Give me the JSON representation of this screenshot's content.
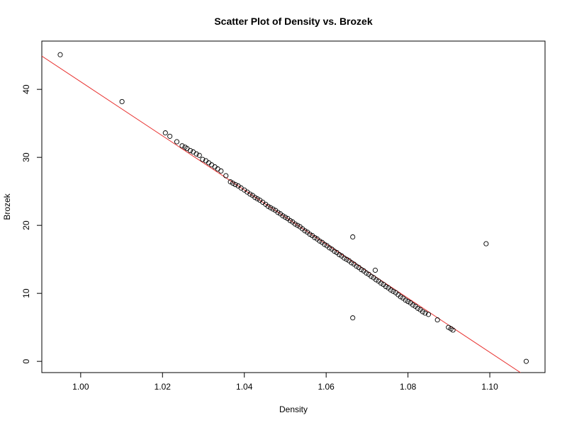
{
  "chart_data": {
    "type": "scatter",
    "title": "Scatter Plot of Density vs. Brozek",
    "xlabel": "Density",
    "ylabel": "Brozek",
    "xlim": [
      0.9905,
      1.1135
    ],
    "ylim": [
      -1.65,
      47.1
    ],
    "x_ticks": [
      1.0,
      1.02,
      1.04,
      1.06,
      1.08,
      1.1
    ],
    "x_tick_labels": [
      "1.00",
      "1.02",
      "1.04",
      "1.06",
      "1.08",
      "1.10"
    ],
    "y_ticks": [
      0,
      10,
      20,
      30,
      40
    ],
    "y_tick_labels": [
      "0",
      "10",
      "20",
      "30",
      "40"
    ],
    "grid": false,
    "legend": "none",
    "point_style": "open-circle",
    "point_color": "#000000",
    "fit_line": {
      "color": "#e8312f",
      "x": [
        0.9905,
        1.1075
      ],
      "y": [
        44.9,
        -1.65
      ]
    },
    "points": [
      {
        "x": 0.995,
        "y": 45.1
      },
      {
        "x": 1.0101,
        "y": 38.2
      },
      {
        "x": 1.0207,
        "y": 33.6
      },
      {
        "x": 1.0218,
        "y": 33.1
      },
      {
        "x": 1.0235,
        "y": 32.3
      },
      {
        "x": 1.0248,
        "y": 31.7
      },
      {
        "x": 1.0255,
        "y": 31.5
      },
      {
        "x": 1.026,
        "y": 31.3
      },
      {
        "x": 1.0268,
        "y": 31.0
      },
      {
        "x": 1.0275,
        "y": 30.8
      },
      {
        "x": 1.0283,
        "y": 30.5
      },
      {
        "x": 1.029,
        "y": 30.3
      },
      {
        "x": 1.0298,
        "y": 29.7
      },
      {
        "x": 1.0306,
        "y": 29.5
      },
      {
        "x": 1.0313,
        "y": 29.2
      },
      {
        "x": 1.032,
        "y": 28.9
      },
      {
        "x": 1.0328,
        "y": 28.6
      },
      {
        "x": 1.0335,
        "y": 28.3
      },
      {
        "x": 1.0343,
        "y": 28.0
      },
      {
        "x": 1.0355,
        "y": 27.3
      },
      {
        "x": 1.0366,
        "y": 26.4
      },
      {
        "x": 1.0372,
        "y": 26.2
      },
      {
        "x": 1.0378,
        "y": 26.0
      },
      {
        "x": 1.0385,
        "y": 25.8
      },
      {
        "x": 1.0392,
        "y": 25.5
      },
      {
        "x": 1.04,
        "y": 25.2
      },
      {
        "x": 1.0407,
        "y": 24.9
      },
      {
        "x": 1.0414,
        "y": 24.6
      },
      {
        "x": 1.042,
        "y": 24.4
      },
      {
        "x": 1.0426,
        "y": 24.1
      },
      {
        "x": 1.0432,
        "y": 23.9
      },
      {
        "x": 1.0438,
        "y": 23.7
      },
      {
        "x": 1.0445,
        "y": 23.4
      },
      {
        "x": 1.0452,
        "y": 23.1
      },
      {
        "x": 1.0458,
        "y": 22.8
      },
      {
        "x": 1.0464,
        "y": 22.6
      },
      {
        "x": 1.047,
        "y": 22.4
      },
      {
        "x": 1.0476,
        "y": 22.2
      },
      {
        "x": 1.0482,
        "y": 21.9
      },
      {
        "x": 1.0488,
        "y": 21.7
      },
      {
        "x": 1.0494,
        "y": 21.4
      },
      {
        "x": 1.05,
        "y": 21.2
      },
      {
        "x": 1.0506,
        "y": 21.0
      },
      {
        "x": 1.0512,
        "y": 20.7
      },
      {
        "x": 1.0518,
        "y": 20.5
      },
      {
        "x": 1.0524,
        "y": 20.2
      },
      {
        "x": 1.053,
        "y": 20.0
      },
      {
        "x": 1.0536,
        "y": 19.8
      },
      {
        "x": 1.0542,
        "y": 19.5
      },
      {
        "x": 1.0548,
        "y": 19.2
      },
      {
        "x": 1.0554,
        "y": 19.0
      },
      {
        "x": 1.056,
        "y": 18.7
      },
      {
        "x": 1.0566,
        "y": 18.5
      },
      {
        "x": 1.0572,
        "y": 18.2
      },
      {
        "x": 1.0578,
        "y": 18.0
      },
      {
        "x": 1.0584,
        "y": 17.7
      },
      {
        "x": 1.059,
        "y": 17.5
      },
      {
        "x": 1.0596,
        "y": 17.2
      },
      {
        "x": 1.0602,
        "y": 17.0
      },
      {
        "x": 1.0608,
        "y": 16.7
      },
      {
        "x": 1.0614,
        "y": 16.5
      },
      {
        "x": 1.062,
        "y": 16.2
      },
      {
        "x": 1.0626,
        "y": 16.0
      },
      {
        "x": 1.0632,
        "y": 15.7
      },
      {
        "x": 1.0638,
        "y": 15.5
      },
      {
        "x": 1.0644,
        "y": 15.2
      },
      {
        "x": 1.065,
        "y": 15.0
      },
      {
        "x": 1.0656,
        "y": 14.8
      },
      {
        "x": 1.0662,
        "y": 14.5
      },
      {
        "x": 1.0668,
        "y": 14.3
      },
      {
        "x": 1.0674,
        "y": 14.0
      },
      {
        "x": 1.068,
        "y": 13.8
      },
      {
        "x": 1.0686,
        "y": 13.5
      },
      {
        "x": 1.0692,
        "y": 13.3
      },
      {
        "x": 1.0698,
        "y": 13.0
      },
      {
        "x": 1.0704,
        "y": 12.8
      },
      {
        "x": 1.071,
        "y": 12.5
      },
      {
        "x": 1.0716,
        "y": 12.3
      },
      {
        "x": 1.0722,
        "y": 12.0
      },
      {
        "x": 1.0728,
        "y": 11.8
      },
      {
        "x": 1.0734,
        "y": 11.5
      },
      {
        "x": 1.074,
        "y": 11.3
      },
      {
        "x": 1.0746,
        "y": 11.0
      },
      {
        "x": 1.0752,
        "y": 10.8
      },
      {
        "x": 1.0758,
        "y": 10.5
      },
      {
        "x": 1.0764,
        "y": 10.3
      },
      {
        "x": 1.077,
        "y": 10.1
      },
      {
        "x": 1.0776,
        "y": 9.8
      },
      {
        "x": 1.0782,
        "y": 9.5
      },
      {
        "x": 1.0788,
        "y": 9.3
      },
      {
        "x": 1.0794,
        "y": 9.0
      },
      {
        "x": 1.08,
        "y": 8.8
      },
      {
        "x": 1.0806,
        "y": 8.6
      },
      {
        "x": 1.0812,
        "y": 8.3
      },
      {
        "x": 1.0818,
        "y": 8.1
      },
      {
        "x": 1.0824,
        "y": 7.8
      },
      {
        "x": 1.083,
        "y": 7.6
      },
      {
        "x": 1.0836,
        "y": 7.3
      },
      {
        "x": 1.0842,
        "y": 7.1
      },
      {
        "x": 1.085,
        "y": 6.9
      },
      {
        "x": 1.0872,
        "y": 6.1
      },
      {
        "x": 1.0899,
        "y": 5.0
      },
      {
        "x": 1.0905,
        "y": 4.8
      },
      {
        "x": 1.091,
        "y": 4.6
      },
      {
        "x": 1.0665,
        "y": 18.3
      },
      {
        "x": 1.0665,
        "y": 6.4
      },
      {
        "x": 1.072,
        "y": 13.4
      },
      {
        "x": 1.0991,
        "y": 17.3
      },
      {
        "x": 1.1089,
        "y": 0.0
      }
    ]
  }
}
